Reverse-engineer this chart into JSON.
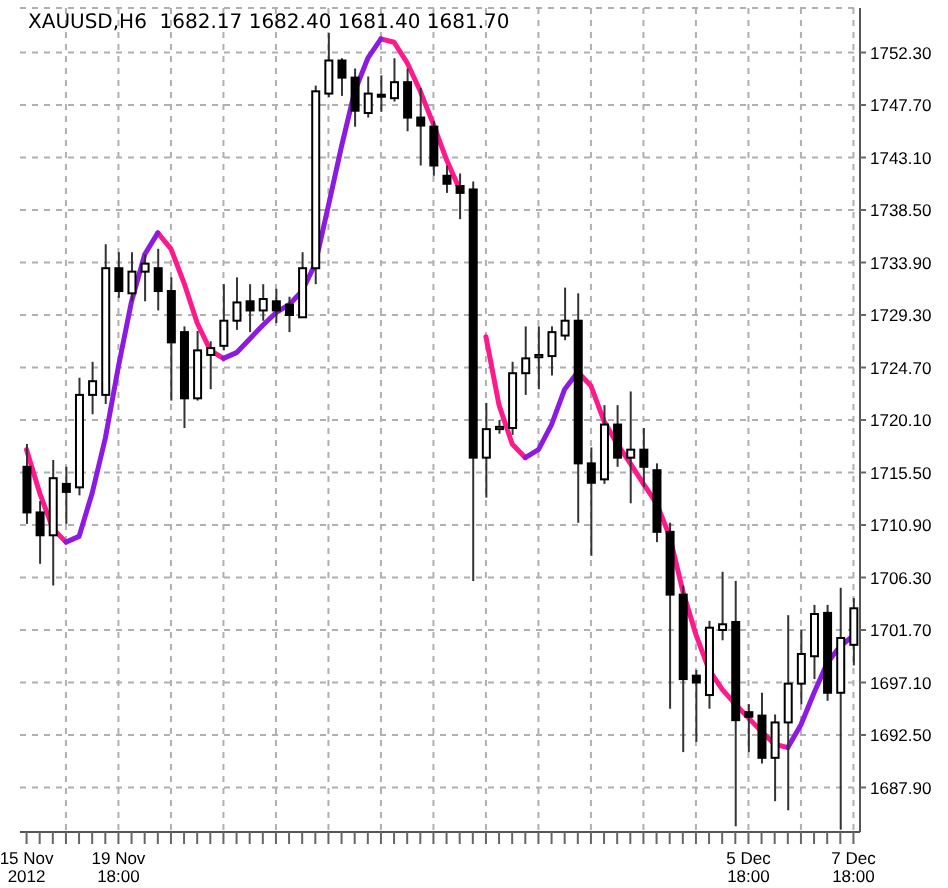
{
  "chart_data": {
    "type": "candlestick",
    "title": "XAUUSD,H6  1682.17 1682.40 1681.40 1681.70",
    "categories": [
      "15 Nov 2012",
      null,
      null,
      null,
      null,
      null,
      null,
      "19 Nov 18:00",
      null,
      null,
      null,
      null,
      null,
      null,
      null,
      null,
      null,
      null,
      null,
      null,
      null,
      null,
      null,
      null,
      null,
      null,
      null,
      null,
      null,
      null,
      null,
      null,
      null,
      null,
      null,
      null,
      null,
      null,
      null,
      null,
      null,
      null,
      null,
      null,
      null,
      null,
      null,
      null,
      null,
      null,
      null,
      null,
      null,
      null,
      null,
      "5 Dec 18:00",
      null,
      null,
      null,
      null,
      null,
      null,
      null,
      "7 Dec 18:00"
    ],
    "ohlc": [
      [
        1716.0,
        1718.0,
        1711.0,
        1712.0
      ],
      [
        1712.0,
        1713.0,
        1707.5,
        1710.0
      ],
      [
        1710.0,
        1716.6,
        1705.6,
        1715.0
      ],
      [
        1714.5,
        1716.0,
        1711.0,
        1713.8
      ],
      [
        1714.2,
        1723.8,
        1713.5,
        1722.3
      ],
      [
        1722.3,
        1725.2,
        1720.6,
        1723.5
      ],
      [
        1722.3,
        1735.5,
        1721.5,
        1733.4
      ],
      [
        1733.4,
        1734.8,
        1730.8,
        1731.4
      ],
      [
        1731.2,
        1734.8,
        1730.5,
        1733.1
      ],
      [
        1733.1,
        1734.6,
        1730.5,
        1733.8
      ],
      [
        1733.4,
        1735.1,
        1729.7,
        1731.4
      ],
      [
        1731.4,
        1732.6,
        1721.8,
        1726.9
      ],
      [
        1727.8,
        1728.3,
        1719.4,
        1722.0
      ],
      [
        1722.0,
        1727.9,
        1721.8,
        1726.2
      ],
      [
        1725.8,
        1727.0,
        1722.8,
        1726.4
      ],
      [
        1726.6,
        1732.0,
        1726.2,
        1728.8
      ],
      [
        1728.8,
        1732.6,
        1728.0,
        1730.4
      ],
      [
        1730.5,
        1732.0,
        1727.8,
        1729.7
      ],
      [
        1729.7,
        1732.0,
        1728.8,
        1730.7
      ],
      [
        1730.5,
        1731.6,
        1728.6,
        1729.7
      ],
      [
        1730.2,
        1730.9,
        1727.8,
        1729.3
      ],
      [
        1729.1,
        1734.8,
        1729.1,
        1733.4
      ],
      [
        1733.4,
        1749.4,
        1732.0,
        1748.9
      ],
      [
        1748.7,
        1754.0,
        1748.4,
        1751.6
      ],
      [
        1751.6,
        1751.8,
        1748.5,
        1750.1
      ],
      [
        1750.1,
        1750.9,
        1745.8,
        1747.2
      ],
      [
        1747.0,
        1750.2,
        1746.6,
        1748.7
      ],
      [
        1748.5,
        1750.3,
        1747.1,
        1748.6
      ],
      [
        1748.3,
        1751.8,
        1748.0,
        1749.7
      ],
      [
        1749.7,
        1750.9,
        1745.4,
        1746.6
      ],
      [
        1746.6,
        1749.2,
        1742.4,
        1745.9
      ],
      [
        1745.8,
        1746.3,
        1741.5,
        1742.4
      ],
      [
        1741.5,
        1742.4,
        1740.0,
        1740.8
      ],
      [
        1740.6,
        1741.7,
        1737.7,
        1740.0
      ],
      [
        1740.3,
        1741.0,
        1706.0,
        1716.8
      ],
      [
        1716.8,
        1721.6,
        1713.3,
        1719.3
      ],
      [
        1719.3,
        1720.1,
        1718.9,
        1719.5
      ],
      [
        1719.4,
        1725.2,
        1718.8,
        1724.2
      ],
      [
        1724.2,
        1728.3,
        1722.3,
        1725.5
      ],
      [
        1725.6,
        1728.3,
        1722.8,
        1725.8
      ],
      [
        1725.7,
        1728.3,
        1724.0,
        1727.8
      ],
      [
        1727.5,
        1731.7,
        1727.1,
        1728.8
      ],
      [
        1728.8,
        1731.2,
        1711.1,
        1716.3
      ],
      [
        1716.3,
        1717.7,
        1708.2,
        1714.6
      ],
      [
        1714.9,
        1721.4,
        1714.5,
        1719.7
      ],
      [
        1719.7,
        1721.4,
        1716.0,
        1716.8
      ],
      [
        1716.8,
        1722.6,
        1712.8,
        1717.5
      ],
      [
        1717.5,
        1719.4,
        1714.2,
        1716.0
      ],
      [
        1715.7,
        1716.3,
        1709.4,
        1710.3
      ],
      [
        1710.3,
        1711.1,
        1694.8,
        1704.8
      ],
      [
        1704.8,
        1705.6,
        1691.0,
        1697.4
      ],
      [
        1697.7,
        1698.2,
        1691.9,
        1697.1
      ],
      [
        1696.0,
        1702.5,
        1694.8,
        1701.9
      ],
      [
        1701.7,
        1706.8,
        1700.8,
        1702.2
      ],
      [
        1702.4,
        1706.0,
        1684.5,
        1693.8
      ],
      [
        1694.5,
        1695.2,
        1691.0,
        1694.1
      ],
      [
        1694.2,
        1696.2,
        1690.0,
        1690.5
      ],
      [
        1690.5,
        1694.3,
        1686.7,
        1693.6
      ],
      [
        1693.6,
        1703.0,
        1685.9,
        1697.0
      ],
      [
        1697.0,
        1701.7,
        1695.2,
        1699.6
      ],
      [
        1699.4,
        1703.9,
        1697.4,
        1703.1
      ],
      [
        1703.2,
        1703.9,
        1695.5,
        1696.2
      ],
      [
        1696.2,
        1705.4,
        1684.2,
        1701.0
      ],
      [
        1700.4,
        1704.5,
        1698.6,
        1703.6
      ]
    ],
    "series": [
      {
        "type": "line",
        "color": "#ff1a8c",
        "values": [
          1717.5,
          1713.7,
          1710.6,
          1709.4,
          null,
          null,
          null,
          null,
          null,
          null,
          1736.5,
          1735.1,
          1732.1,
          1728.6,
          1726.2,
          1725.5,
          null,
          null,
          null,
          null,
          null,
          null,
          null,
          null,
          null,
          null,
          null,
          1753.5,
          1753.2,
          1751.4,
          1748.9,
          1746.0,
          1742.9,
          1740.3,
          null,
          1727.4,
          1721.4,
          1718.0,
          1716.8,
          null,
          null,
          null,
          1724.3,
          1723.1,
          1720.0,
          1718.0,
          1716.3,
          1714.5,
          1712.8,
          1709.9,
          1705.1,
          1701.3,
          1698.2,
          1696.5,
          1695.2,
          1694.0,
          1692.8,
          1691.7,
          1691.4,
          null,
          null,
          null,
          null,
          null
        ]
      },
      {
        "type": "line",
        "color": "#8c1ae0",
        "values": [
          null,
          null,
          null,
          1709.4,
          1709.9,
          1713.7,
          1718.5,
          1724.8,
          1730.5,
          1734.6,
          1736.5,
          null,
          null,
          null,
          null,
          1725.5,
          1726.0,
          1727.2,
          1728.4,
          1729.5,
          1730.2,
          1731.4,
          1733.8,
          1738.9,
          1744.1,
          1748.9,
          1751.8,
          1753.5,
          null,
          null,
          null,
          null,
          null,
          null,
          null,
          null,
          null,
          null,
          1716.8,
          1717.5,
          1719.7,
          1722.8,
          1724.3,
          null,
          null,
          null,
          null,
          null,
          null,
          null,
          null,
          null,
          null,
          null,
          null,
          null,
          null,
          null,
          1691.4,
          1693.4,
          1696.2,
          1698.8,
          1700.3,
          1701.2
        ]
      }
    ],
    "ylim": [
      1684.0,
      1756.2
    ],
    "yticks": [
      {
        "value": 1687.9,
        "label": "1687.90"
      },
      {
        "value": 1692.5,
        "label": "1692.50"
      },
      {
        "value": 1697.1,
        "label": "1697.10"
      },
      {
        "value": 1701.7,
        "label": "1701.70"
      },
      {
        "value": 1706.3,
        "label": "1706.30"
      },
      {
        "value": 1710.9,
        "label": "1710.90"
      },
      {
        "value": 1715.5,
        "label": "1715.50"
      },
      {
        "value": 1720.1,
        "label": "1720.10"
      },
      {
        "value": 1724.7,
        "label": "1724.70"
      },
      {
        "value": 1729.3,
        "label": "1729.30"
      },
      {
        "value": 1733.9,
        "label": "1733.90"
      },
      {
        "value": 1738.5,
        "label": "1738.50"
      },
      {
        "value": 1743.1,
        "label": "1743.10"
      },
      {
        "value": 1747.7,
        "label": "1747.70"
      },
      {
        "value": 1752.3,
        "label": "1752.30"
      }
    ],
    "grid": true,
    "legend": false
  }
}
